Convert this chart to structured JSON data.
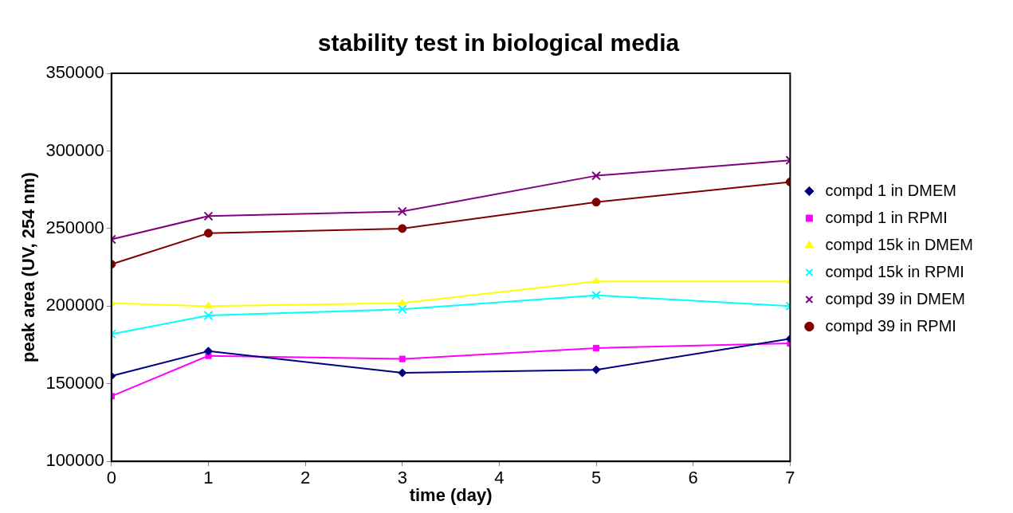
{
  "chart_data": {
    "type": "line",
    "title": "stability test in biological media",
    "xlabel": "time (day)",
    "ylabel": "peak area (UV, 254 nm)",
    "x": [
      0,
      1,
      3,
      5,
      7
    ],
    "xlim": [
      0,
      7
    ],
    "xticks": [
      0,
      1,
      2,
      3,
      4,
      5,
      6,
      7
    ],
    "ylim": [
      100000,
      350000
    ],
    "yticks": [
      100000,
      150000,
      200000,
      250000,
      300000,
      350000
    ],
    "grid": false,
    "legend": "right",
    "series": [
      {
        "name": "compd 1 in DMEM",
        "color": "#000080",
        "marker": "diamond",
        "values": [
          155000,
          171000,
          157000,
          159000,
          179000
        ]
      },
      {
        "name": "compd 1 in RPMI",
        "color": "#ff00ff",
        "marker": "square",
        "values": [
          142000,
          168000,
          166000,
          173000,
          176000
        ]
      },
      {
        "name": "compd 15k in DMEM",
        "color": "#ffff00",
        "marker": "triangle",
        "values": [
          202000,
          200000,
          202000,
          216000,
          216000
        ]
      },
      {
        "name": "compd 15k in RPMI",
        "color": "#00ffff",
        "marker": "cross",
        "values": [
          182000,
          194000,
          198000,
          207000,
          200000
        ]
      },
      {
        "name": "compd 39 in DMEM",
        "color": "#800080",
        "marker": "cross",
        "values": [
          243000,
          258000,
          261000,
          284000,
          294000
        ]
      },
      {
        "name": "compd 39 in RPMI",
        "color": "#800000",
        "marker": "circle",
        "values": [
          227000,
          247000,
          250000,
          267000,
          280000
        ]
      }
    ]
  }
}
